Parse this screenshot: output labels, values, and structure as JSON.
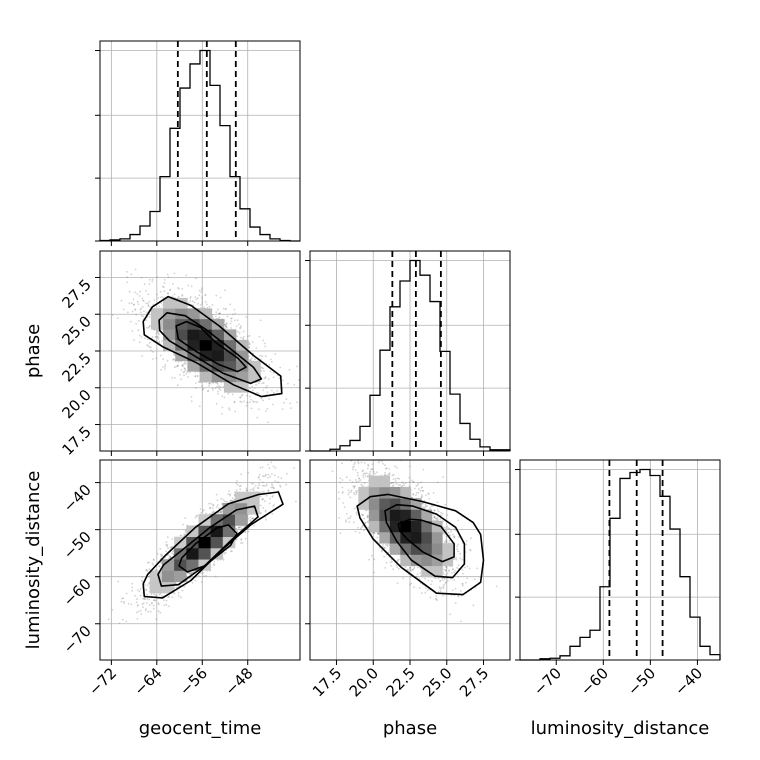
{
  "chart_data": {
    "type": "corner",
    "parameters": [
      {
        "name": "geocent_time",
        "label": "geocent_time",
        "ticks": [
          -72,
          -64,
          -56,
          -48
        ],
        "range": [
          -74,
          -38.8
        ],
        "quantiles": [
          -60.3,
          -55.2,
          -50.1
        ]
      },
      {
        "name": "phase",
        "label": "phase",
        "ticks": [
          17.5,
          20.0,
          22.5,
          25.0,
          27.5
        ],
        "range": [
          15.7,
          29.3
        ],
        "quantiles": [
          21.3,
          22.9,
          24.6
        ]
      },
      {
        "name": "luminosity_distance",
        "label": "luminosity_distance",
        "ticks": [
          -70,
          -60,
          -50,
          -40
        ],
        "range": [
          -77.7,
          -35.2
        ],
        "quantiles": [
          -58.7,
          -52.9,
          -47.4
        ]
      }
    ],
    "tick_labels": {
      "geocent_time": [
        "−72",
        "−64",
        "−56",
        "−48"
      ],
      "phase": [
        "17.5",
        "20.0",
        "22.5",
        "25.0",
        "27.5"
      ],
      "luminosity_distance": [
        "−70",
        "−60",
        "−50",
        "−40"
      ]
    },
    "histograms": {
      "geocent_time": {
        "bin_edges": [
          -74.0,
          -72.24,
          -70.48,
          -68.72,
          -66.96,
          -65.2,
          -63.44,
          -61.68,
          -59.92,
          -58.16,
          -56.4,
          -54.64,
          -52.88,
          -51.12,
          -49.36,
          -47.6,
          -45.84,
          -44.08,
          -42.32,
          -40.56,
          -38.8
        ],
        "counts": [
          1,
          2,
          4,
          12,
          28,
          55,
          120,
          210,
          285,
          330,
          355,
          290,
          215,
          120,
          60,
          26,
          12,
          4,
          1,
          0
        ]
      },
      "phase": {
        "bin_edges": [
          15.7,
          16.38,
          17.06,
          17.74,
          18.42,
          19.1,
          19.78,
          20.46,
          21.14,
          21.82,
          22.5,
          23.18,
          23.86,
          24.54,
          25.22,
          25.9,
          26.58,
          27.26,
          27.94,
          28.62,
          29.3
        ],
        "counts": [
          0,
          0,
          3,
          9,
          18,
          42,
          95,
          172,
          246,
          290,
          325,
          300,
          255,
          170,
          97,
          47,
          20,
          7,
          2,
          2
        ]
      },
      "luminosity_distance": {
        "bin_edges": [
          -77.7,
          -75.575,
          -73.45,
          -71.325,
          -69.2,
          -67.075,
          -64.95,
          -62.825,
          -60.7,
          -58.575,
          -56.45,
          -54.325,
          -52.2,
          -50.075,
          -47.95,
          -45.825,
          -43.7,
          -41.575,
          -39.45,
          -37.325,
          -35.2
        ],
        "counts": [
          0,
          0,
          2,
          3,
          7,
          23,
          38,
          50,
          123,
          238,
          305,
          315,
          320,
          310,
          275,
          220,
          140,
          72,
          23,
          9
        ]
      }
    },
    "histogram_style": {
      "color": "#000000",
      "quantile_line": "dashed"
    },
    "contours": {
      "phase_vs_geocent_time": {
        "levels": [
          [
            [
              -66.4,
              24.5
            ],
            [
              -64.8,
              25.5
            ],
            [
              -62,
              26.2
            ],
            [
              -58,
              25.6
            ],
            [
              -53,
              24.2
            ],
            [
              -47,
              22.2
            ],
            [
              -42.2,
              20.8
            ],
            [
              -42,
              19.6
            ],
            [
              -45.6,
              19.4
            ],
            [
              -50.5,
              20.2
            ],
            [
              -57,
              21.7
            ],
            [
              -63,
              22.8
            ],
            [
              -66.2,
              23.6
            ]
          ],
          [
            [
              -63.6,
              24.6
            ],
            [
              -62.2,
              25.1
            ],
            [
              -59,
              24.9
            ],
            [
              -55.5,
              24.0
            ],
            [
              -51.5,
              22.8
            ],
            [
              -47,
              21.4
            ],
            [
              -45.6,
              20.6
            ],
            [
              -47.5,
              20.3
            ],
            [
              -52.4,
              21.0
            ],
            [
              -57.5,
              22.2
            ],
            [
              -61.8,
              23.2
            ],
            [
              -63.5,
              23.9
            ]
          ],
          [
            [
              -60.6,
              24.2
            ],
            [
              -58.8,
              24.5
            ],
            [
              -56.3,
              24.1
            ],
            [
              -53.7,
              23.1
            ],
            [
              -49.7,
              22.0
            ],
            [
              -48.3,
              21.4
            ],
            [
              -49.8,
              21.1
            ],
            [
              -53.2,
              21.6
            ],
            [
              -57.2,
              22.5
            ],
            [
              -60.2,
              23.3
            ]
          ]
        ],
        "density_peak": [
          -55.4,
          22.9
        ]
      },
      "luminosity_distance_vs_geocent_time": {
        "levels": [
          [
            [
              -66.4,
              -61.5
            ],
            [
              -66.2,
              -64.2
            ],
            [
              -63.0,
              -64.5
            ],
            [
              -58.0,
              -60.8
            ],
            [
              -52.7,
              -54.5
            ],
            [
              -47.5,
              -49.0
            ],
            [
              -41.8,
              -44.6
            ],
            [
              -42.6,
              -42.0
            ],
            [
              -46.0,
              -42.5
            ],
            [
              -51.4,
              -44.5
            ],
            [
              -57.2,
              -49.5
            ],
            [
              -62.5,
              -55.5
            ],
            [
              -65.6,
              -59.5
            ]
          ],
          [
            [
              -63.8,
              -59.5
            ],
            [
              -63.2,
              -62.0
            ],
            [
              -60.2,
              -61.7
            ],
            [
              -55.7,
              -57.8
            ],
            [
              -50.7,
              -52.0
            ],
            [
              -46.2,
              -47.3
            ],
            [
              -46.8,
              -45.0
            ],
            [
              -50.0,
              -45.8
            ],
            [
              -54.6,
              -49.5
            ],
            [
              -59.2,
              -54.0
            ],
            [
              -62.8,
              -57.5
            ]
          ],
          [
            [
              -60.1,
              -57.7
            ],
            [
              -58.6,
              -59.0
            ],
            [
              -55.6,
              -57.7
            ],
            [
              -51.0,
              -53.3
            ],
            [
              -49.9,
              -50.8
            ],
            [
              -51.4,
              -49.0
            ],
            [
              -53.5,
              -49.7
            ],
            [
              -57.2,
              -53.0
            ],
            [
              -59.6,
              -56.0
            ]
          ]
        ],
        "density_peak": [
          -55.6,
          -52.7
        ]
      },
      "luminosity_distance_vs_phase": {
        "levels": [
          [
            [
              18.9,
              -45.0
            ],
            [
              19.8,
              -43.0
            ],
            [
              21.0,
              -42.5
            ],
            [
              23.3,
              -44.0
            ],
            [
              25.6,
              -46.0
            ],
            [
              26.8,
              -48.5
            ],
            [
              27.3,
              -51.0
            ],
            [
              27.5,
              -56.5
            ],
            [
              27.3,
              -61.2
            ],
            [
              26.1,
              -63.8
            ],
            [
              24.3,
              -63.5
            ],
            [
              21.9,
              -58.0
            ],
            [
              20.0,
              -52.0
            ],
            [
              19.1,
              -47.5
            ]
          ],
          [
            [
              20.8,
              -46.0
            ],
            [
              21.6,
              -44.7
            ],
            [
              22.7,
              -45.0
            ],
            [
              24.3,
              -46.7
            ],
            [
              25.6,
              -49.5
            ],
            [
              26.2,
              -53.0
            ],
            [
              26.2,
              -57.3
            ],
            [
              25.4,
              -60.2
            ],
            [
              24.2,
              -59.9
            ],
            [
              22.6,
              -56.5
            ],
            [
              21.6,
              -52.5
            ],
            [
              20.9,
              -48.5
            ]
          ],
          [
            [
              21.7,
              -48.8
            ],
            [
              22.5,
              -47.8
            ],
            [
              23.3,
              -48.0
            ],
            [
              24.6,
              -49.3
            ],
            [
              25.5,
              -53.0
            ],
            [
              25.5,
              -55.8
            ],
            [
              24.7,
              -56.8
            ],
            [
              23.4,
              -54.8
            ],
            [
              22.3,
              -52.0
            ],
            [
              21.8,
              -50.2
            ]
          ]
        ],
        "density_peak": [
          22.2,
          -49.3
        ]
      }
    },
    "contour_style": {
      "color": "#000000",
      "scatter_color": "#808080",
      "density_colormap": "greys"
    }
  }
}
